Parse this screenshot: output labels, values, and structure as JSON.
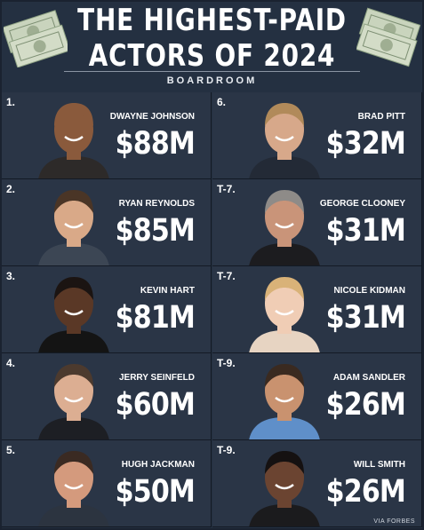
{
  "header": {
    "title_line1": "THE HIGHEST-PAID",
    "title_line2": "ACTORS OF 2024",
    "brand": "BOARDROOM"
  },
  "credit": "VIA FORBES",
  "colors": {
    "background": "#243041",
    "card": "#2a3546",
    "text": "#ffffff"
  },
  "actors": [
    {
      "rank": "1.",
      "name": "DWAYNE JOHNSON",
      "earnings": "$88M",
      "skin": "#8a5a3c",
      "hair": "#8a5a3c",
      "shirt": "#2d2a29"
    },
    {
      "rank": "2.",
      "name": "RYAN REYNOLDS",
      "earnings": "$85M",
      "skin": "#d9a988",
      "hair": "#4a3526",
      "shirt": "#3c4654"
    },
    {
      "rank": "3.",
      "name": "KEVIN HART",
      "earnings": "$81M",
      "skin": "#5a3826",
      "hair": "#1b1412",
      "shirt": "#141414"
    },
    {
      "rank": "4.",
      "name": "JERRY SEINFELD",
      "earnings": "$60M",
      "skin": "#dcae92",
      "hair": "#4c3a2e",
      "shirt": "#1d1f24"
    },
    {
      "rank": "5.",
      "name": "HUGH JACKMAN",
      "earnings": "$50M",
      "skin": "#d49a7d",
      "hair": "#3a2a22",
      "shirt": "#2c3440"
    },
    {
      "rank": "6.",
      "name": "BRAD PITT",
      "earnings": "$32M",
      "skin": "#d7a88a",
      "hair": "#b18a5a",
      "shirt": "#232a36"
    },
    {
      "rank": "T-7.",
      "name": "GEORGE CLOONEY",
      "earnings": "$31M",
      "skin": "#c99479",
      "hair": "#8e8b88",
      "shirt": "#1c1c1f"
    },
    {
      "rank": "T-7.",
      "name": "NICOLE KIDMAN",
      "earnings": "$31M",
      "skin": "#f0cdb5",
      "hair": "#d9b278",
      "shirt": "#e7d4c2"
    },
    {
      "rank": "T-9.",
      "name": "ADAM SANDLER",
      "earnings": "$26M",
      "skin": "#c9926f",
      "hair": "#3a2a20",
      "shirt": "#5f8fc9"
    },
    {
      "rank": "T-9.",
      "name": "WILL SMITH",
      "earnings": "$26M",
      "skin": "#6b4431",
      "hair": "#151111",
      "shirt": "#1b1b1d"
    }
  ]
}
